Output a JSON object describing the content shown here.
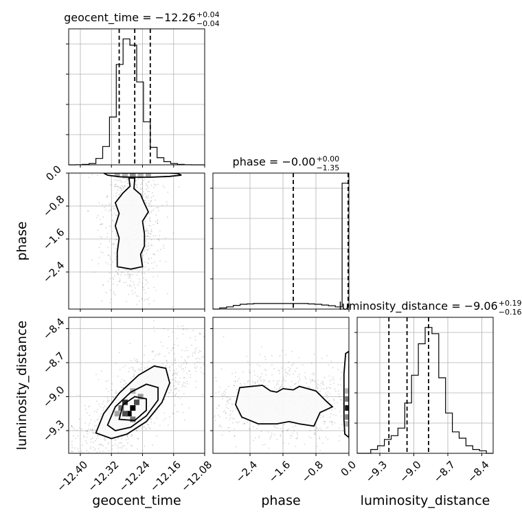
{
  "chart_data": {
    "type": "corner",
    "parameters": [
      {
        "name": "geocent_time",
        "xlabel": "geocent_time",
        "range": [
          -12.43,
          -12.08
        ],
        "ticks": [
          -12.4,
          -12.32,
          -12.24,
          -12.16,
          -12.08
        ],
        "tick_labels": [
          "−12.40",
          "−12.32",
          "−12.24",
          "−12.16",
          "−12.08"
        ],
        "title_main": "geocent_time = −12.26",
        "title_sup": "+0.04",
        "title_sub": "−0.04",
        "quantiles": [
          -12.3,
          -12.26,
          -12.22
        ],
        "hist_edges": [
          -12.43,
          -12.4125,
          -12.395,
          -12.3775,
          -12.36,
          -12.3425,
          -12.325,
          -12.3075,
          -12.29,
          -12.2725,
          -12.255,
          -12.2375,
          -12.22,
          -12.2025,
          -12.185,
          -12.1675,
          -12.15,
          -12.1325,
          -12.115,
          -12.0975,
          -12.08
        ],
        "hist_counts": [
          0,
          1,
          3,
          8,
          40,
          115,
          300,
          630,
          790,
          750,
          520,
          270,
          110,
          45,
          20,
          8,
          3,
          1,
          0,
          0
        ]
      },
      {
        "name": "phase",
        "xlabel": "phase",
        "ylabel": "phase",
        "range": [
          -3.3,
          0.0
        ],
        "ticks": [
          -2.4,
          -1.6,
          -0.8,
          0.0
        ],
        "tick_labels": [
          "−2.4",
          "−1.6",
          "−0.8",
          "0.0"
        ],
        "title_main": "phase = −0.00",
        "title_sup": "+0.00",
        "title_sub": "−1.35",
        "quantiles": [
          -1.35,
          -0.005,
          -0.0
        ],
        "hist_edges": [
          -3.3,
          -3.135,
          -2.97,
          -2.805,
          -2.64,
          -2.475,
          -2.31,
          -2.145,
          -1.98,
          -1.815,
          -1.65,
          -1.485,
          -1.32,
          -1.155,
          -0.99,
          -0.825,
          -0.66,
          -0.495,
          -0.33,
          -0.165,
          0.0
        ],
        "hist_counts": [
          0,
          6,
          12,
          20,
          26,
          28,
          30,
          30,
          30,
          30,
          30,
          30,
          30,
          30,
          28,
          26,
          22,
          18,
          12,
          680
        ]
      },
      {
        "name": "luminosity_distance",
        "xlabel": "luminosity_distance",
        "ylabel": "luminosity_distance",
        "range": [
          -9.5,
          -8.3
        ],
        "ticks": [
          -9.3,
          -9.0,
          -8.7,
          -8.4
        ],
        "tick_labels": [
          "−9.3",
          "−9.0",
          "−8.7",
          "−8.4"
        ],
        "title_main": "luminosity_distance = −9.06",
        "title_sup": "+0.19",
        "title_sub": "−0.16",
        "quantiles": [
          -9.22,
          -9.06,
          -8.87
        ],
        "hist_edges": [
          -9.5,
          -9.44,
          -9.38,
          -9.32,
          -9.26,
          -9.2,
          -9.14,
          -9.08,
          -9.02,
          -8.96,
          -8.9,
          -8.84,
          -8.78,
          -8.72,
          -8.66,
          -8.6,
          -8.54,
          -8.48,
          -8.42,
          -8.36,
          -8.3
        ],
        "hist_counts": [
          0,
          0,
          3,
          6,
          11,
          14,
          20,
          40,
          62,
          87,
          100,
          95,
          60,
          32,
          17,
          12,
          6,
          3,
          2,
          0
        ]
      }
    ],
    "density_2d": [
      {
        "x_param": "geocent_time",
        "y_param": "phase",
        "levels": 2,
        "blocks": [
          [
            -12.285,
            -0.02,
            0.86
          ],
          [
            -12.265,
            -0.02,
            1.0
          ],
          [
            -12.245,
            -0.02,
            0.86
          ],
          [
            -12.305,
            -0.02,
            0.35
          ],
          [
            -12.225,
            -0.02,
            0.35
          ],
          [
            -12.285,
            -0.06,
            0.3
          ],
          [
            -12.265,
            -0.06,
            0.45
          ],
          [
            -12.245,
            -0.06,
            0.3
          ]
        ],
        "contours": [
          [
            [
              -12.34,
              0.0
            ],
            [
              -12.33,
              -0.05
            ],
            [
              -12.3,
              -0.09
            ],
            [
              -12.27,
              -0.1
            ],
            [
              -12.22,
              -0.1
            ],
            [
              -12.17,
              -0.08
            ],
            [
              -12.14,
              -0.05
            ],
            [
              -12.15,
              -0.01
            ],
            [
              -12.17,
              0.0
            ]
          ],
          [
            [
              -12.275,
              -0.12
            ],
            [
              -12.272,
              -0.32
            ],
            [
              -12.29,
              -0.48
            ],
            [
              -12.31,
              -0.72
            ],
            [
              -12.3,
              -0.98
            ],
            [
              -12.31,
              -1.28
            ],
            [
              -12.3,
              -1.58
            ],
            [
              -12.305,
              -1.92
            ],
            [
              -12.305,
              -2.27
            ],
            [
              -12.27,
              -2.33
            ],
            [
              -12.24,
              -2.27
            ],
            [
              -12.245,
              -1.97
            ],
            [
              -12.235,
              -1.77
            ],
            [
              -12.235,
              -1.47
            ],
            [
              -12.24,
              -1.17
            ],
            [
              -12.225,
              -0.94
            ],
            [
              -12.235,
              -0.74
            ],
            [
              -12.245,
              -0.52
            ],
            [
              -12.262,
              -0.38
            ],
            [
              -12.26,
              -0.12
            ]
          ]
        ]
      },
      {
        "x_param": "geocent_time",
        "y_param": "luminosity_distance",
        "levels": 3,
        "blocks": [
          [
            -12.265,
            -9.1,
            1.0
          ],
          [
            -12.275,
            -9.15,
            1.0
          ],
          [
            -12.285,
            -9.05,
            0.8
          ],
          [
            -12.255,
            -9.05,
            0.7
          ],
          [
            -12.285,
            -9.15,
            0.7
          ],
          [
            -12.295,
            -9.1,
            0.55
          ],
          [
            -12.265,
            -9.2,
            0.55
          ],
          [
            -12.245,
            -9.0,
            0.4
          ],
          [
            -12.305,
            -9.15,
            0.35
          ],
          [
            -12.265,
            -8.95,
            0.3
          ]
        ],
        "contours": [
          [
            [
              -12.36,
              -9.32
            ],
            [
              -12.34,
              -9.15
            ],
            [
              -12.3,
              -8.97
            ],
            [
              -12.25,
              -8.81
            ],
            [
              -12.21,
              -8.73
            ],
            [
              -12.18,
              -8.75
            ],
            [
              -12.17,
              -8.88
            ],
            [
              -12.19,
              -9.05
            ],
            [
              -12.23,
              -9.22
            ],
            [
              -12.28,
              -9.33
            ],
            [
              -12.32,
              -9.37
            ]
          ],
          [
            [
              -12.33,
              -9.25
            ],
            [
              -12.31,
              -9.09
            ],
            [
              -12.27,
              -8.96
            ],
            [
              -12.23,
              -8.89
            ],
            [
              -12.2,
              -8.92
            ],
            [
              -12.2,
              -9.03
            ],
            [
              -12.23,
              -9.17
            ],
            [
              -12.27,
              -9.27
            ],
            [
              -12.31,
              -9.3
            ]
          ],
          [
            [
              -12.3,
              -9.2
            ],
            [
              -12.29,
              -9.07
            ],
            [
              -12.26,
              -9.0
            ],
            [
              -12.23,
              -9.02
            ],
            [
              -12.23,
              -9.12
            ],
            [
              -12.26,
              -9.21
            ]
          ]
        ]
      },
      {
        "x_param": "phase",
        "y_param": "luminosity_distance",
        "levels": 2,
        "blocks": [
          [
            -0.03,
            -9.1,
            0.9
          ],
          [
            -0.03,
            -9.02,
            0.55
          ],
          [
            -0.03,
            -9.18,
            0.5
          ],
          [
            -0.03,
            -8.95,
            0.3
          ],
          [
            -0.03,
            -9.24,
            0.3
          ]
        ],
        "contours": [
          [
            [
              -2.65,
              -8.92
            ],
            [
              -2.1,
              -8.9
            ],
            [
              -1.9,
              -8.95
            ],
            [
              -1.75,
              -8.96
            ],
            [
              -1.6,
              -8.93
            ],
            [
              -1.35,
              -8.94
            ],
            [
              -1.2,
              -8.91
            ],
            [
              -1.0,
              -8.93
            ],
            [
              -0.8,
              -8.95
            ],
            [
              -0.55,
              -9.04
            ],
            [
              -0.4,
              -9.09
            ],
            [
              -0.7,
              -9.14
            ],
            [
              -0.85,
              -9.26
            ],
            [
              -1.2,
              -9.24
            ],
            [
              -1.45,
              -9.22
            ],
            [
              -1.75,
              -9.24
            ],
            [
              -2.2,
              -9.24
            ],
            [
              -2.6,
              -9.18
            ],
            [
              -2.75,
              -9.07
            ]
          ],
          [
            [
              0.0,
              -8.6
            ],
            [
              -0.08,
              -8.62
            ],
            [
              -0.12,
              -8.8
            ],
            [
              -0.12,
              -9.2
            ],
            [
              -0.1,
              -9.33
            ],
            [
              0.0,
              -9.36
            ]
          ]
        ]
      }
    ],
    "grid": true
  }
}
